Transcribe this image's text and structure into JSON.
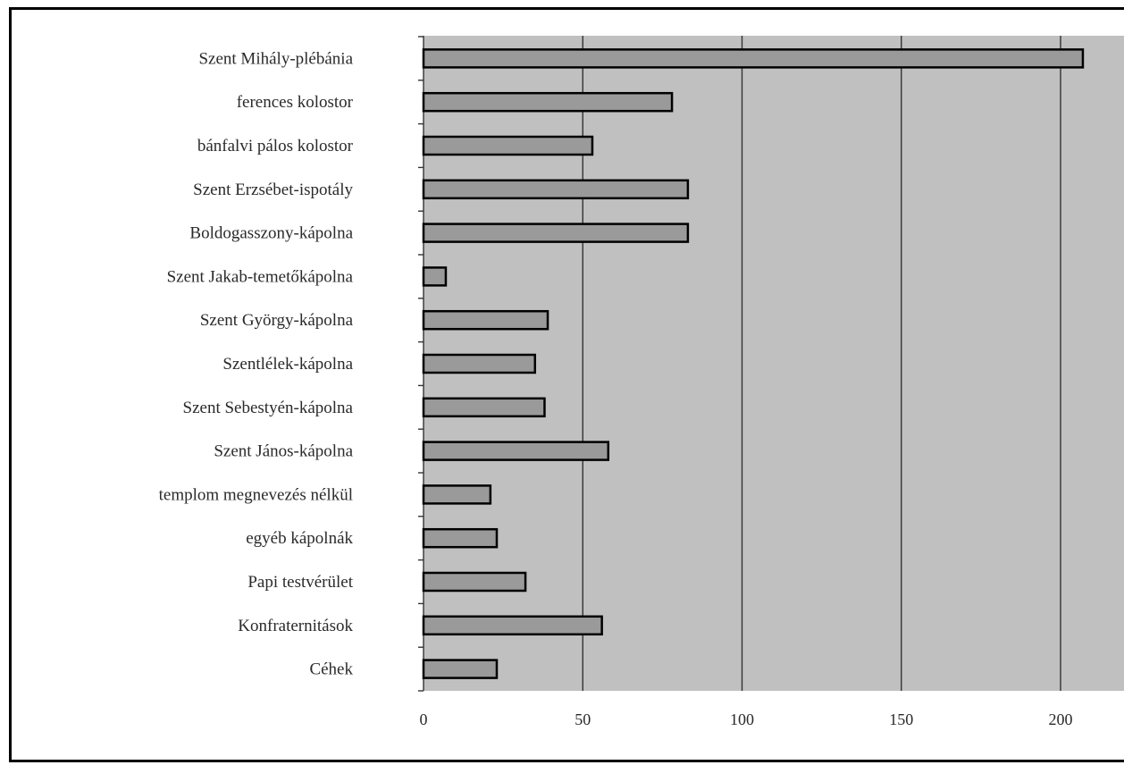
{
  "chart_data": {
    "type": "bar",
    "orientation": "horizontal",
    "categories": [
      "Szent Mihály-plébánia",
      "ferences kolostor",
      "bánfalvi pálos kolostor",
      "Szent Erzsébet-ispotály",
      "Boldogasszony-kápolna",
      "Szent Jakab-temetőkápolna",
      "Szent György-kápolna",
      "Szentlélek-kápolna",
      "Szent Sebestyén-kápolna",
      "Szent János-kápolna",
      "templom megnevezés nélkül",
      "egyéb kápolnák",
      "Papi testvérület",
      "Konfraternitások",
      "Céhek"
    ],
    "values": [
      207,
      78,
      53,
      83,
      83,
      7,
      39,
      35,
      38,
      58,
      21,
      23,
      32,
      56,
      23
    ],
    "x_ticks": [
      "0",
      "50",
      "100",
      "150",
      "200"
    ],
    "xlim": [
      0,
      220
    ],
    "grid": true,
    "plot_background": "#c0c0c0",
    "bar_color": "#9a9a9a"
  }
}
